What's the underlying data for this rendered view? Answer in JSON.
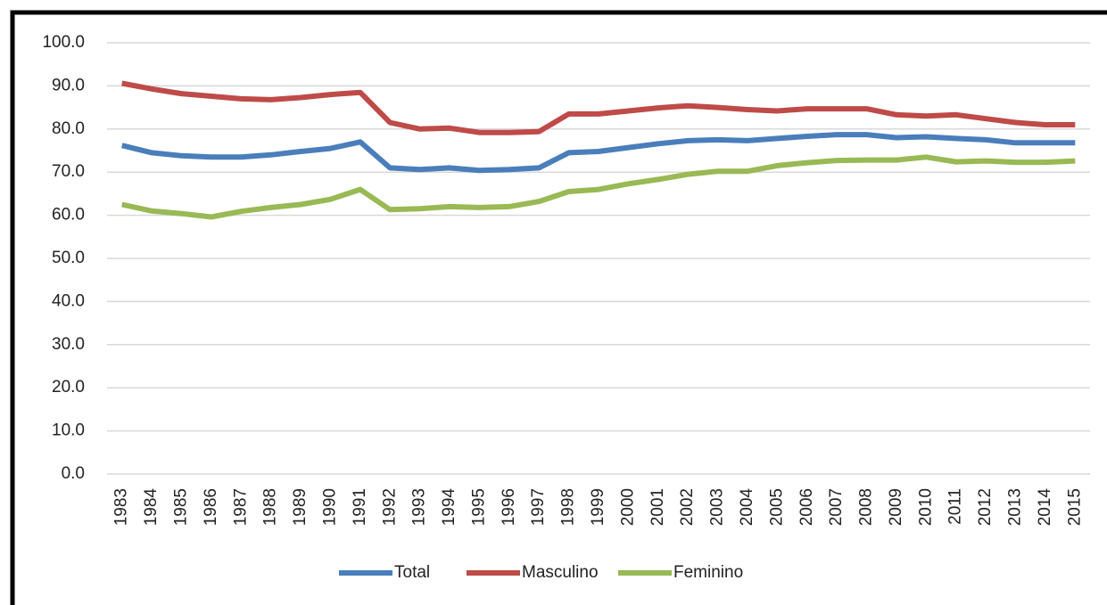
{
  "chart_data": {
    "type": "line",
    "categories": [
      "1983",
      "1984",
      "1985",
      "1986",
      "1987",
      "1988",
      "1989",
      "1990",
      "1991",
      "1992",
      "1993",
      "1994",
      "1995",
      "1996",
      "1997",
      "1998",
      "1999",
      "2000",
      "2001",
      "2002",
      "2003",
      "2004",
      "2005",
      "2006",
      "2007",
      "2008",
      "2009",
      "2010",
      "2011",
      "2012",
      "2013",
      "2014",
      "2015"
    ],
    "series": [
      {
        "name": "Total",
        "color": "#4a7ebb",
        "values": [
          76.2,
          74.5,
          73.8,
          73.5,
          73.5,
          74.0,
          74.8,
          75.5,
          77.0,
          71.0,
          70.6,
          71.0,
          70.4,
          70.6,
          71.0,
          74.5,
          74.8,
          75.7,
          76.6,
          77.3,
          77.5,
          77.3,
          77.8,
          78.3,
          78.7,
          78.7,
          78.0,
          78.2,
          77.8,
          77.5,
          76.8,
          76.8,
          76.8
        ]
      },
      {
        "name": "Masculino",
        "color": "#be4b48",
        "values": [
          90.6,
          89.3,
          88.2,
          87.6,
          87.0,
          86.8,
          87.3,
          88.0,
          88.5,
          81.5,
          80.0,
          80.2,
          79.2,
          79.2,
          79.4,
          83.5,
          83.5,
          84.2,
          84.9,
          85.4,
          85.0,
          84.5,
          84.2,
          84.7,
          84.7,
          84.7,
          83.3,
          83.0,
          83.3,
          82.4,
          81.5,
          81.0,
          81.0
        ]
      },
      {
        "name": "Feminino",
        "color": "#98b954",
        "values": [
          62.5,
          61.0,
          60.4,
          59.6,
          60.9,
          61.8,
          62.5,
          63.7,
          66.0,
          61.3,
          61.5,
          62.0,
          61.8,
          62.0,
          63.2,
          65.5,
          66.0,
          67.3,
          68.3,
          69.5,
          70.2,
          70.2,
          71.5,
          72.2,
          72.7,
          72.8,
          72.8,
          73.5,
          72.4,
          72.6,
          72.3,
          72.3,
          72.6
        ]
      }
    ],
    "ylim": [
      0,
      100
    ],
    "yticks": [
      {
        "value": 0,
        "label": "0.0"
      },
      {
        "value": 10,
        "label": "10.0"
      },
      {
        "value": 20,
        "label": "20.0"
      },
      {
        "value": 30,
        "label": "30.0"
      },
      {
        "value": 40,
        "label": "40.0"
      },
      {
        "value": 50,
        "label": "50.0"
      },
      {
        "value": 60,
        "label": "60.0"
      },
      {
        "value": 70,
        "label": "70.0"
      },
      {
        "value": 80,
        "label": "80.0"
      },
      {
        "value": 90,
        "label": "90.0"
      },
      {
        "value": 100,
        "label": "100.0"
      }
    ],
    "grid": true,
    "legend": "bottom"
  }
}
